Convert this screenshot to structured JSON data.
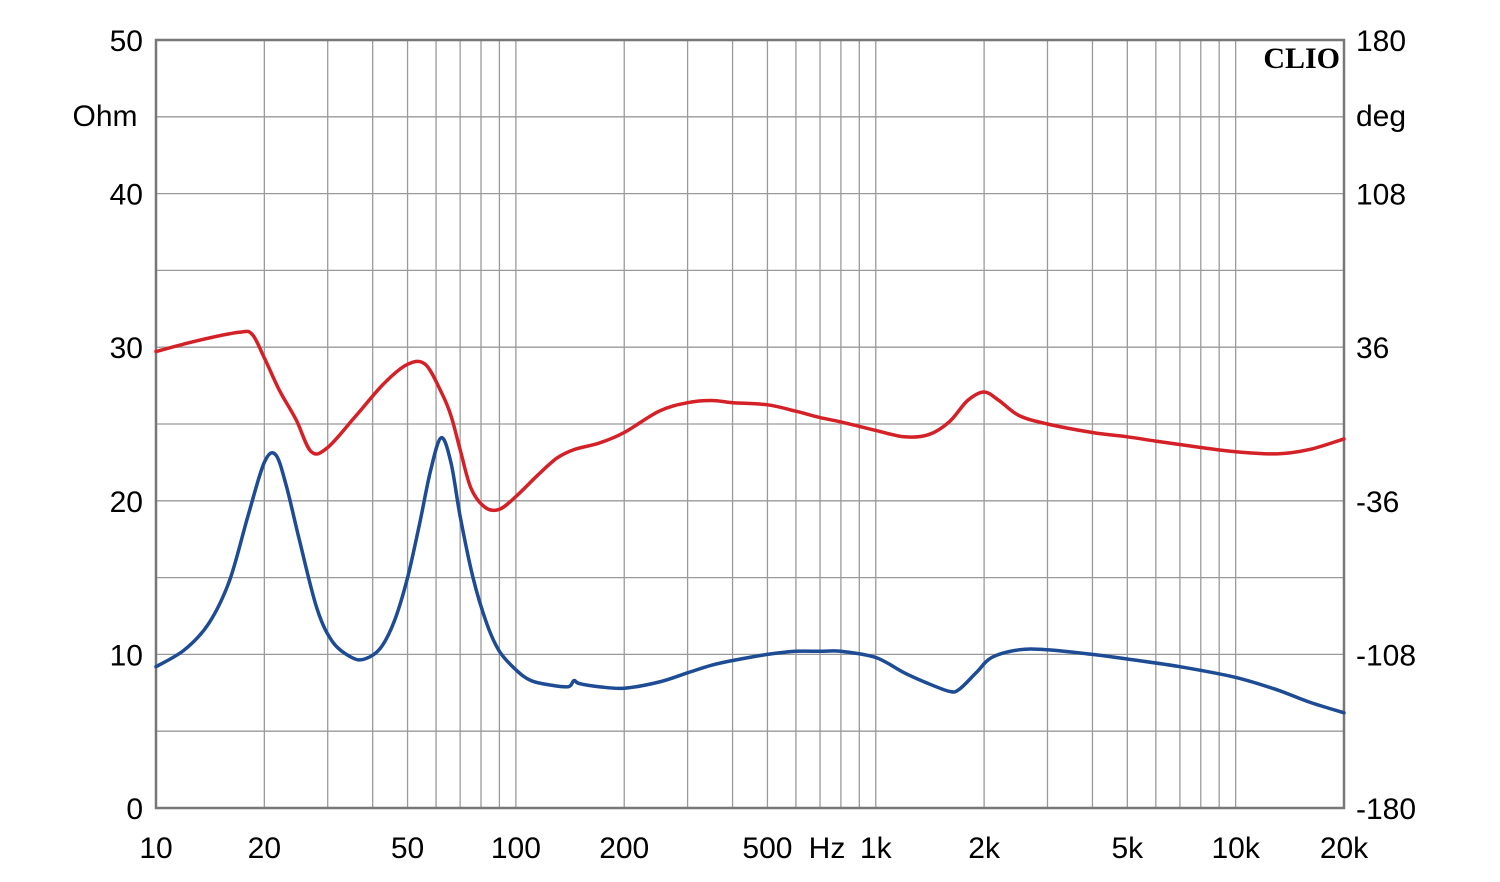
{
  "chart_data": {
    "type": "line",
    "brand": "CLIO",
    "xscale": "log",
    "xlim": [
      10,
      20000
    ],
    "ylim": [
      0,
      50
    ],
    "y2lim": [
      -180,
      180
    ],
    "left_unit": "Ohm",
    "right_unit": "deg",
    "grid": true,
    "x_ticks": [
      {
        "value": 10,
        "label": "10"
      },
      {
        "value": 20,
        "label": "20"
      },
      {
        "value": 50,
        "label": "50"
      },
      {
        "value": 100,
        "label": "100"
      },
      {
        "value": 200,
        "label": "200"
      },
      {
        "value": 500,
        "label": "500"
      },
      {
        "value": 1000,
        "label": "1k"
      },
      {
        "value": 2000,
        "label": "2k"
      },
      {
        "value": 5000,
        "label": "5k"
      },
      {
        "value": 10000,
        "label": "10k"
      },
      {
        "value": 20000,
        "label": "20k"
      }
    ],
    "x_unit_label": "Hz",
    "y_ticks": [
      {
        "value": 0,
        "label": "0"
      },
      {
        "value": 10,
        "label": "10"
      },
      {
        "value": 20,
        "label": "20"
      },
      {
        "value": 30,
        "label": "30"
      },
      {
        "value": 40,
        "label": "40"
      },
      {
        "value": 50,
        "label": "50"
      }
    ],
    "y2_ticks": [
      {
        "value": -180,
        "label": "-180"
      },
      {
        "value": -108,
        "label": "-108"
      },
      {
        "value": -36,
        "label": "-36"
      },
      {
        "value": 36,
        "label": "36"
      },
      {
        "value": 108,
        "label": "108"
      },
      {
        "value": 180,
        "label": "180"
      }
    ],
    "series": [
      {
        "color": "#d42027",
        "axis": "right",
        "points": [
          [
            10,
            34
          ],
          [
            13,
            39
          ],
          [
            17,
            43
          ],
          [
            18.5,
            42
          ],
          [
            20,
            31
          ],
          [
            22,
            16
          ],
          [
            24.5,
            2
          ],
          [
            27,
            -13
          ],
          [
            30,
            -11
          ],
          [
            36,
            4
          ],
          [
            43,
            19
          ],
          [
            50,
            28
          ],
          [
            56,
            28
          ],
          [
            62,
            15
          ],
          [
            66,
            4
          ],
          [
            70,
            -12
          ],
          [
            75,
            -30
          ],
          [
            82,
            -39
          ],
          [
            90,
            -40
          ],
          [
            100,
            -34
          ],
          [
            115,
            -24
          ],
          [
            130,
            -16
          ],
          [
            145,
            -12
          ],
          [
            170,
            -9
          ],
          [
            200,
            -4
          ],
          [
            250,
            6
          ],
          [
            300,
            10
          ],
          [
            350,
            11
          ],
          [
            400,
            10
          ],
          [
            500,
            9
          ],
          [
            600,
            6
          ],
          [
            700,
            3
          ],
          [
            800,
            1
          ],
          [
            1000,
            -3
          ],
          [
            1200,
            -6
          ],
          [
            1400,
            -5
          ],
          [
            1600,
            1
          ],
          [
            1800,
            11
          ],
          [
            2000,
            15
          ],
          [
            2200,
            11
          ],
          [
            2500,
            4
          ],
          [
            3000,
            0
          ],
          [
            4000,
            -4
          ],
          [
            5000,
            -6
          ],
          [
            6000,
            -8
          ],
          [
            8000,
            -11
          ],
          [
            10000,
            -13
          ],
          [
            13000,
            -14
          ],
          [
            16000,
            -12
          ],
          [
            20000,
            -7
          ]
        ]
      },
      {
        "color": "#1d4b94",
        "axis": "left",
        "points": [
          [
            10,
            9.2
          ],
          [
            12,
            10.3
          ],
          [
            14,
            12
          ],
          [
            16,
            14.8
          ],
          [
            18,
            19
          ],
          [
            20,
            22.5
          ],
          [
            21.5,
            23
          ],
          [
            23,
            21
          ],
          [
            25,
            17.5
          ],
          [
            28,
            13
          ],
          [
            31,
            10.8
          ],
          [
            35,
            9.8
          ],
          [
            38,
            9.7
          ],
          [
            42,
            10.4
          ],
          [
            46,
            12.2
          ],
          [
            50,
            15
          ],
          [
            54,
            18.5
          ],
          [
            58,
            22
          ],
          [
            62,
            24.1
          ],
          [
            66,
            22.5
          ],
          [
            70,
            19
          ],
          [
            76,
            15
          ],
          [
            83,
            12
          ],
          [
            90,
            10.2
          ],
          [
            100,
            9
          ],
          [
            110,
            8.3
          ],
          [
            125,
            8
          ],
          [
            140,
            7.9
          ],
          [
            145,
            8.3
          ],
          [
            150,
            8.1
          ],
          [
            170,
            7.9
          ],
          [
            200,
            7.8
          ],
          [
            250,
            8.2
          ],
          [
            300,
            8.8
          ],
          [
            350,
            9.3
          ],
          [
            400,
            9.6
          ],
          [
            500,
            10
          ],
          [
            600,
            10.2
          ],
          [
            700,
            10.2
          ],
          [
            800,
            10.2
          ],
          [
            1000,
            9.8
          ],
          [
            1200,
            8.8
          ],
          [
            1400,
            8.1
          ],
          [
            1600,
            7.6
          ],
          [
            1700,
            7.7
          ],
          [
            1900,
            8.8
          ],
          [
            2100,
            9.8
          ],
          [
            2500,
            10.3
          ],
          [
            3000,
            10.3
          ],
          [
            4000,
            10
          ],
          [
            5000,
            9.7
          ],
          [
            7000,
            9.2
          ],
          [
            10000,
            8.5
          ],
          [
            13000,
            7.7
          ],
          [
            16000,
            6.9
          ],
          [
            20000,
            6.2
          ]
        ]
      }
    ]
  }
}
